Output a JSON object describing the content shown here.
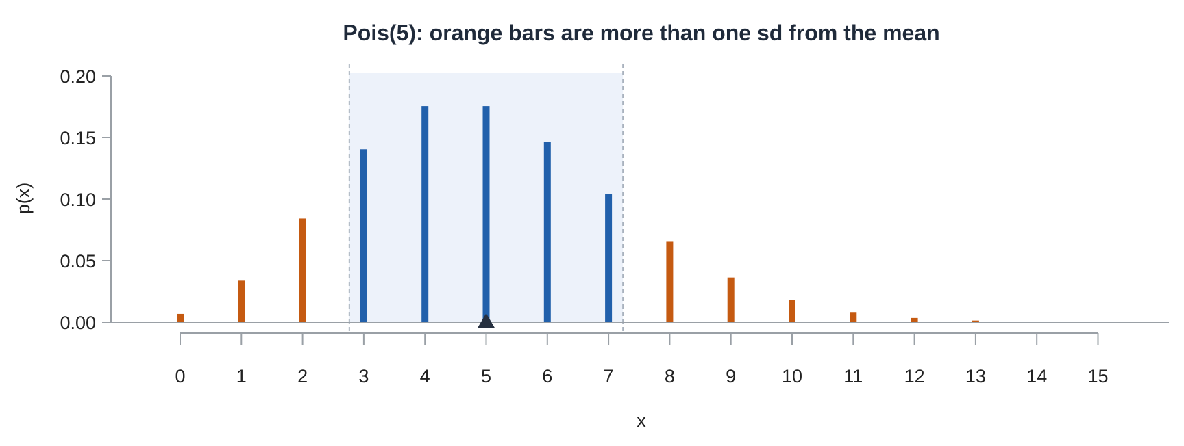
{
  "chart_data": {
    "type": "bar",
    "title": "Pois(5): orange bars are more than one sd from the mean",
    "xlabel": "x",
    "ylabel": "p(x)",
    "xlim": [
      0,
      15
    ],
    "ylim": [
      0,
      0.2
    ],
    "x_ticks": [
      "0",
      "1",
      "2",
      "3",
      "4",
      "5",
      "6",
      "7",
      "8",
      "9",
      "10",
      "11",
      "12",
      "13",
      "14",
      "15"
    ],
    "y_ticks": [
      "0.00",
      "0.05",
      "0.10",
      "0.15",
      "0.20"
    ],
    "x": [
      0,
      1,
      2,
      3,
      4,
      5,
      6,
      7,
      8,
      9,
      10,
      11,
      12,
      13
    ],
    "values": [
      0.0067,
      0.0337,
      0.0842,
      0.1404,
      0.1755,
      0.1755,
      0.1462,
      0.1044,
      0.0653,
      0.0363,
      0.0181,
      0.0082,
      0.0034,
      0.0013
    ],
    "mean": 5,
    "sd_band": [
      2.764,
      7.236
    ],
    "colors": {
      "within_one_sd": "#2160ab",
      "beyond_one_sd": "#c55a11",
      "band_fill": "#edf2fa",
      "band_line": "#a9b2be",
      "axis": "#9aa0a6",
      "mean_marker": "#263040",
      "title": "#1f2a3a"
    },
    "grid": false,
    "legend": "none",
    "mean_marker": "triangle"
  }
}
